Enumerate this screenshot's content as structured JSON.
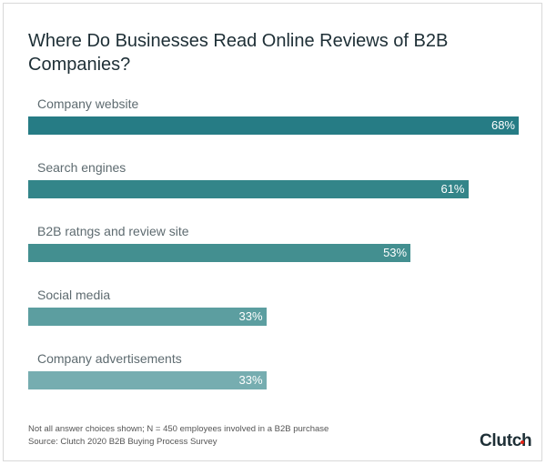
{
  "chart_data": {
    "type": "bar",
    "orientation": "horizontal",
    "title": "Where Do Businesses Read Online Reviews of B2B Companies?",
    "categories": [
      "Company website",
      "Search engines",
      "B2B ratngs and review site",
      "Social media",
      "Company advertisements"
    ],
    "values": [
      68,
      61,
      53,
      33,
      33
    ],
    "value_labels": [
      "68%",
      "61%",
      "53%",
      "33%",
      "33%"
    ],
    "colors": [
      "#267c85",
      "#338589",
      "#438f90",
      "#5c9ea0",
      "#76adb0"
    ],
    "grid": false
  },
  "footer": {
    "note": "Not all answer choices shown; N = 450 employees involved in a B2B purchase",
    "source": "Source: Clutch 2020 B2B Buying Process Survey"
  },
  "logo": "Clutch"
}
